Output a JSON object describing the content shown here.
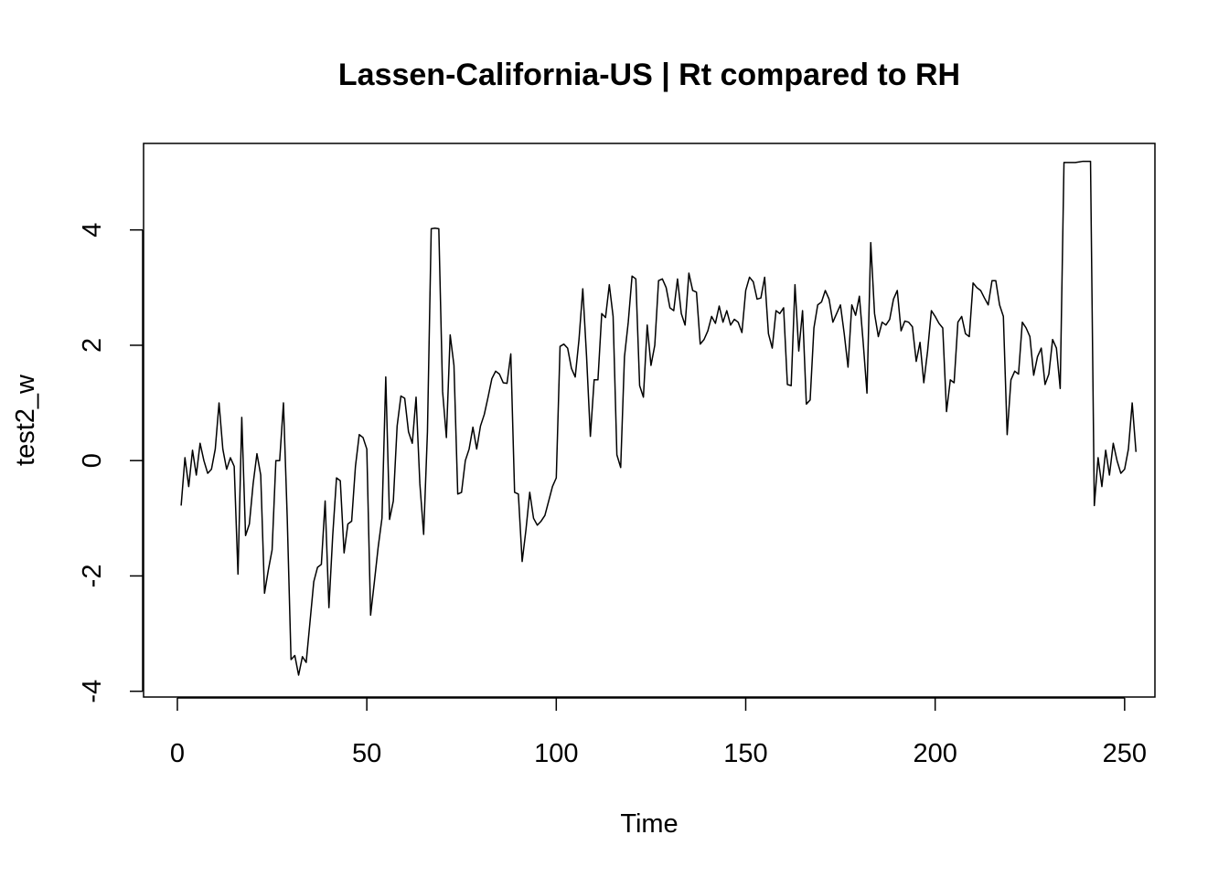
{
  "chart_data": {
    "type": "line",
    "title": "Lassen-California-US | Rt compared to RH",
    "xlabel": "Time",
    "ylabel": "test2_w",
    "xlim": [
      -8.92,
      258
    ],
    "ylim": [
      -4.1,
      5.5
    ],
    "x_ticks": [
      0,
      50,
      100,
      150,
      200,
      250
    ],
    "y_ticks": [
      -4,
      -2,
      0,
      2,
      4
    ],
    "grid": false,
    "legend": "none",
    "x_start": 1,
    "series": [
      {
        "color": "#000000",
        "values": [
          -0.78,
          0.05,
          -0.45,
          0.18,
          -0.25,
          0.3,
          0.0,
          -0.22,
          -0.15,
          0.2,
          1.0,
          0.2,
          -0.15,
          0.05,
          -0.1,
          -1.97,
          0.75,
          -1.3,
          -1.1,
          -0.4,
          0.12,
          -0.25,
          -2.3,
          -1.9,
          -1.55,
          0.0,
          0.0,
          1.0,
          -1.0,
          -3.45,
          -3.38,
          -3.72,
          -3.4,
          -3.5,
          -2.8,
          -2.1,
          -1.85,
          -1.8,
          -0.7,
          -2.55,
          -1.3,
          -0.3,
          -0.35,
          -1.6,
          -1.1,
          -1.05,
          -0.1,
          0.45,
          0.4,
          0.2,
          -2.68,
          -2.1,
          -1.5,
          -1.0,
          1.45,
          -1.02,
          -0.7,
          0.6,
          1.12,
          1.08,
          0.5,
          0.3,
          1.1,
          -0.4,
          -1.28,
          0.5,
          4.02,
          4.03,
          4.02,
          1.2,
          0.4,
          2.18,
          1.65,
          -0.58,
          -0.55,
          0.0,
          0.2,
          0.58,
          0.2,
          0.6,
          0.8,
          1.1,
          1.42,
          1.55,
          1.5,
          1.35,
          1.34,
          1.85,
          -0.55,
          -0.58,
          -1.75,
          -1.2,
          -0.55,
          -1.0,
          -1.12,
          -1.05,
          -0.95,
          -0.7,
          -0.45,
          -0.3,
          1.98,
          2.02,
          1.95,
          1.6,
          1.45,
          2.1,
          2.98,
          1.8,
          0.42,
          1.4,
          1.4,
          2.55,
          2.48,
          3.05,
          2.5,
          0.1,
          -0.12,
          1.8,
          2.4,
          3.2,
          3.15,
          1.3,
          1.1,
          2.35,
          1.65,
          2.0,
          3.12,
          3.15,
          3.0,
          2.65,
          2.6,
          3.15,
          2.55,
          2.35,
          3.25,
          2.95,
          2.92,
          2.02,
          2.1,
          2.25,
          2.5,
          2.38,
          2.68,
          2.4,
          2.6,
          2.35,
          2.45,
          2.4,
          2.22,
          2.95,
          3.18,
          3.1,
          2.8,
          2.82,
          3.18,
          2.2,
          1.95,
          2.6,
          2.55,
          2.65,
          1.32,
          1.3,
          3.05,
          1.9,
          2.6,
          0.98,
          1.05,
          2.3,
          2.7,
          2.75,
          2.95,
          2.8,
          2.4,
          2.55,
          2.7,
          2.2,
          1.62,
          2.7,
          2.52,
          2.85,
          2.05,
          1.17,
          3.78,
          2.55,
          2.15,
          2.4,
          2.35,
          2.45,
          2.8,
          2.95,
          2.25,
          2.42,
          2.4,
          2.32,
          1.72,
          2.05,
          1.35,
          1.9,
          2.6,
          2.5,
          2.38,
          2.3,
          0.85,
          1.4,
          1.35,
          2.4,
          2.5,
          2.2,
          2.15,
          3.08,
          3.0,
          2.95,
          2.82,
          2.7,
          3.12,
          3.12,
          2.7,
          2.5,
          0.45,
          1.4,
          1.55,
          1.5,
          2.4,
          2.3,
          2.15,
          1.48,
          1.8,
          1.95,
          1.32,
          1.5,
          2.1,
          1.95,
          1.25,
          5.17,
          5.17,
          5.17,
          5.17,
          5.18,
          5.19,
          5.19,
          5.19,
          -0.78,
          0.05,
          -0.45,
          0.18,
          -0.25,
          0.3,
          0.0,
          -0.22,
          -0.15,
          0.2,
          1.0,
          0.15
        ]
      }
    ]
  }
}
